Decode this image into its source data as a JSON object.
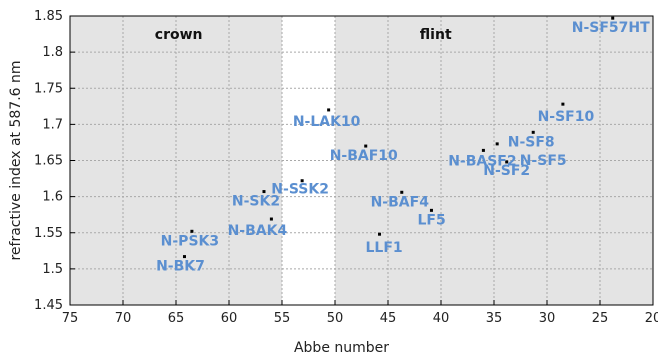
{
  "chart_data": {
    "type": "scatter",
    "title": "",
    "xlabel": "Abbe number",
    "ylabel": "refractive index at 587.6 nm",
    "xlim": [
      75,
      20
    ],
    "ylim": [
      1.45,
      1.85
    ],
    "x_reversed": true,
    "grid": true,
    "x_ticks": [
      75,
      70,
      65,
      60,
      55,
      50,
      45,
      40,
      35,
      30,
      25,
      20
    ],
    "y_ticks": [
      1.45,
      1.5,
      1.55,
      1.6,
      1.65,
      1.7,
      1.75,
      1.8,
      1.85
    ],
    "x_tick_labels": [
      "75",
      "70",
      "65",
      "60",
      "55",
      "50",
      "45",
      "40",
      "35",
      "30",
      "25",
      "20"
    ],
    "y_tick_labels": [
      "1.45",
      "1.5",
      "1.55",
      "1.6",
      "1.65",
      "1.7",
      "1.75",
      "1.8",
      "1.85"
    ],
    "regions": [
      {
        "label": "crown",
        "x_range": [
          75,
          55
        ]
      },
      {
        "label": "flint",
        "x_range": [
          50,
          20
        ]
      }
    ],
    "points": [
      {
        "label": "N-BK7",
        "x": 64.2,
        "y": 1.517
      },
      {
        "label": "N-PSK3",
        "x": 63.5,
        "y": 1.552
      },
      {
        "label": "N-BAK4",
        "x": 56.0,
        "y": 1.569
      },
      {
        "label": "N-SK2",
        "x": 56.7,
        "y": 1.607
      },
      {
        "label": "N-SSK2",
        "x": 53.1,
        "y": 1.622
      },
      {
        "label": "N-LAK10",
        "x": 50.6,
        "y": 1.72
      },
      {
        "label": "N-BAF10",
        "x": 47.1,
        "y": 1.67
      },
      {
        "label": "N-BAF4",
        "x": 43.7,
        "y": 1.606
      },
      {
        "label": "LF5",
        "x": 40.9,
        "y": 1.581
      },
      {
        "label": "LLF1",
        "x": 45.8,
        "y": 1.548
      },
      {
        "label": "N-BASF2",
        "x": 36.0,
        "y": 1.664
      },
      {
        "label": "N-SF2",
        "x": 33.8,
        "y": 1.648
      },
      {
        "label": "N-SF8",
        "x": 31.3,
        "y": 1.689
      },
      {
        "label": "N-SF10",
        "x": 28.5,
        "y": 1.728
      },
      {
        "label": "N-SF5",
        "x": 34.7,
        "y": 1.673
      },
      {
        "label": "N-SF57HT",
        "x": 23.8,
        "y": 1.847
      }
    ]
  },
  "colors": {
    "shaded": "#e4e4e4",
    "label": "#5b8fd0",
    "marker": "#000000",
    "grid": "#a9a9a9"
  }
}
